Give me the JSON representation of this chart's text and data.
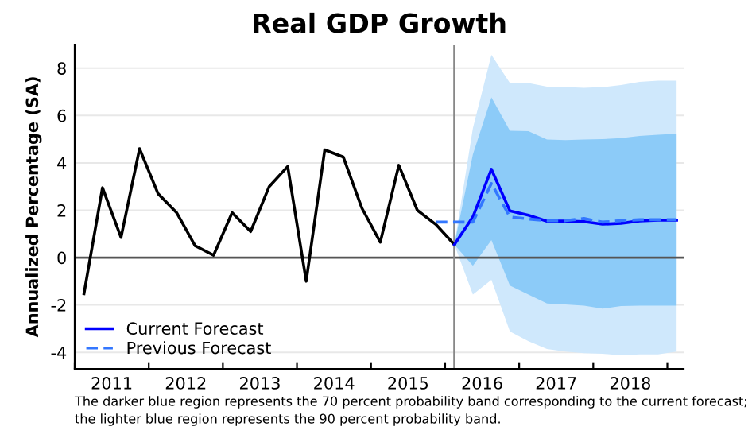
{
  "chart_data": {
    "type": "line",
    "title": "Real GDP Growth",
    "ylabel": "Annualized Percentage (SA)",
    "xlim": [
      2011.0,
      2019.22
    ],
    "ylim": [
      -4.7,
      9
    ],
    "xticks": [
      {
        "value": 2011,
        "label": null
      },
      {
        "value": 2011.5,
        "label": "2011"
      },
      {
        "value": 2012,
        "label": null
      },
      {
        "value": 2012.5,
        "label": "2012"
      },
      {
        "value": 2013,
        "label": null
      },
      {
        "value": 2013.5,
        "label": "2013"
      },
      {
        "value": 2014,
        "label": null
      },
      {
        "value": 2014.5,
        "label": "2014"
      },
      {
        "value": 2015,
        "label": null
      },
      {
        "value": 2015.5,
        "label": "2015"
      },
      {
        "value": 2016,
        "label": null
      },
      {
        "value": 2016.5,
        "label": "2016"
      },
      {
        "value": 2017,
        "label": null
      },
      {
        "value": 2017.5,
        "label": "2017"
      },
      {
        "value": 2018,
        "label": null
      },
      {
        "value": 2018.5,
        "label": "2018"
      },
      {
        "value": 2019,
        "label": null
      }
    ],
    "yticks": [
      {
        "value": -4,
        "label": "-4"
      },
      {
        "value": -2,
        "label": "-2"
      },
      0,
      2,
      4,
      6,
      8
    ],
    "grid": "y",
    "legend": "bottom left",
    "series": [
      {
        "color": "#cfe8fc",
        "x": [
          2016.125,
          2016.375,
          2016.625,
          2016.875,
          2017.125,
          2017.375,
          2017.625,
          2017.875,
          2018.125,
          2018.375,
          2018.625,
          2018.875,
          2019.125
        ],
        "values": [
          null,
          null,
          null,
          null,
          null,
          null,
          null,
          null,
          null,
          null,
          null,
          null,
          null
        ],
        "upper": [
          0.55,
          5.47,
          8.56,
          7.37,
          7.37,
          7.22,
          7.2,
          7.17,
          7.2,
          7.29,
          7.42,
          7.47,
          7.47
        ],
        "lower": [
          0.55,
          -1.56,
          -0.94,
          -3.12,
          -3.53,
          -3.86,
          -3.97,
          -4.04,
          -4.06,
          -4.13,
          -4.09,
          -4.09,
          -3.97
        ]
      },
      {
        "color": "#8ccbf8",
        "x": [
          2016.125,
          2016.375,
          2016.625,
          2016.875,
          2017.125,
          2017.375,
          2017.625,
          2017.875,
          2018.125,
          2018.375,
          2018.625,
          2018.875,
          2019.125
        ],
        "values": [
          null,
          null,
          null,
          null,
          null,
          null,
          null,
          null,
          null,
          null,
          null,
          null,
          null
        ],
        "upper": [
          0.55,
          4.36,
          6.77,
          5.36,
          5.34,
          4.99,
          4.96,
          4.99,
          5.0,
          5.05,
          5.14,
          5.19,
          5.23
        ],
        "lower": [
          0.55,
          -0.34,
          0.74,
          -1.18,
          -1.56,
          -1.94,
          -1.98,
          -2.03,
          -2.16,
          -2.05,
          -2.03,
          -2.03,
          -2.03
        ]
      },
      {
        "color": "#000000",
        "line_style": "solid",
        "x": [
          2011.125,
          2011.375,
          2011.625,
          2011.875,
          2012.125,
          2012.375,
          2012.625,
          2012.875,
          2013.125,
          2013.375,
          2013.625,
          2013.875,
          2014.125,
          2014.375,
          2014.625,
          2014.875,
          2015.125,
          2015.375,
          2015.625,
          2015.875,
          2016.125
        ],
        "values": [
          -1.52,
          2.95,
          0.85,
          4.6,
          2.7,
          1.9,
          0.5,
          0.1,
          1.9,
          1.1,
          3.0,
          3.85,
          -1.0,
          4.55,
          4.25,
          2.1,
          0.65,
          3.9,
          2.0,
          1.4,
          0.55
        ]
      },
      {
        "name": "Current Forecast",
        "color": "#0000ff",
        "line_style": "solid",
        "x": [
          2016.125,
          2016.375,
          2016.625,
          2016.875,
          2017.125,
          2017.375,
          2017.625,
          2017.875,
          2018.125,
          2018.375,
          2018.625,
          2018.875,
          2019.125
        ],
        "values": [
          0.55,
          1.72,
          3.73,
          1.97,
          1.79,
          1.54,
          1.54,
          1.52,
          1.41,
          1.45,
          1.55,
          1.58,
          1.58
        ]
      },
      {
        "name": "Previous Forecast",
        "color": "#3377ff",
        "line_style": "dashed",
        "x": [
          2015.875,
          2016.125,
          2016.375,
          2016.625,
          2016.875,
          2017.125,
          2017.375,
          2017.625,
          2017.875,
          2018.125,
          2018.375,
          2018.625,
          2018.875,
          2019.125
        ],
        "values": [
          1.5,
          1.5,
          1.5,
          3.13,
          1.72,
          1.63,
          1.56,
          1.56,
          1.65,
          1.5,
          1.56,
          1.6,
          1.6,
          1.6
        ]
      }
    ],
    "ref_lines": [
      {
        "axis": "y",
        "value": 0,
        "color": "#555555"
      },
      {
        "axis": "x",
        "value": 2016.125,
        "color": "#888888"
      }
    ],
    "annotations": [
      "The darker blue region represents the 70 percent probability band corresponding to the current forecast;",
      "the lighter blue region represents the 90 percent probability band."
    ]
  }
}
